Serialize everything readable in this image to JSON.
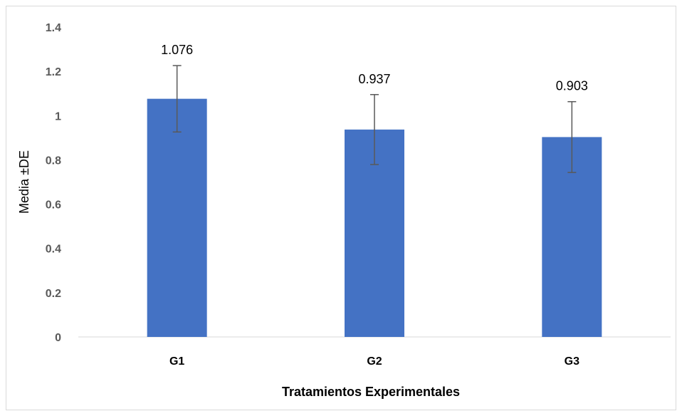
{
  "chart_data": {
    "type": "bar",
    "categories": [
      "G1",
      "G2",
      "G3"
    ],
    "values": [
      1.076,
      0.937,
      0.903
    ],
    "error": [
      0.15,
      0.158,
      0.16
    ],
    "data_labels": [
      "1.076",
      "0.937",
      "0.903"
    ],
    "xlabel": "Tratamientos Experimentales",
    "ylabel": "Media ±DE",
    "ylim": [
      0,
      1.4
    ],
    "yticks": [
      0,
      0.2,
      0.4,
      0.6,
      0.8,
      1,
      1.2,
      1.4
    ],
    "ytick_labels": [
      "0",
      "0.2",
      "0.4",
      "0.6",
      "0.8",
      "1",
      "1.2",
      "1.4"
    ],
    "grid": false,
    "legend": "none",
    "colors": {
      "bar": "#4472c4",
      "error_bar": "#595959",
      "axis": "#d9d9d9"
    }
  }
}
